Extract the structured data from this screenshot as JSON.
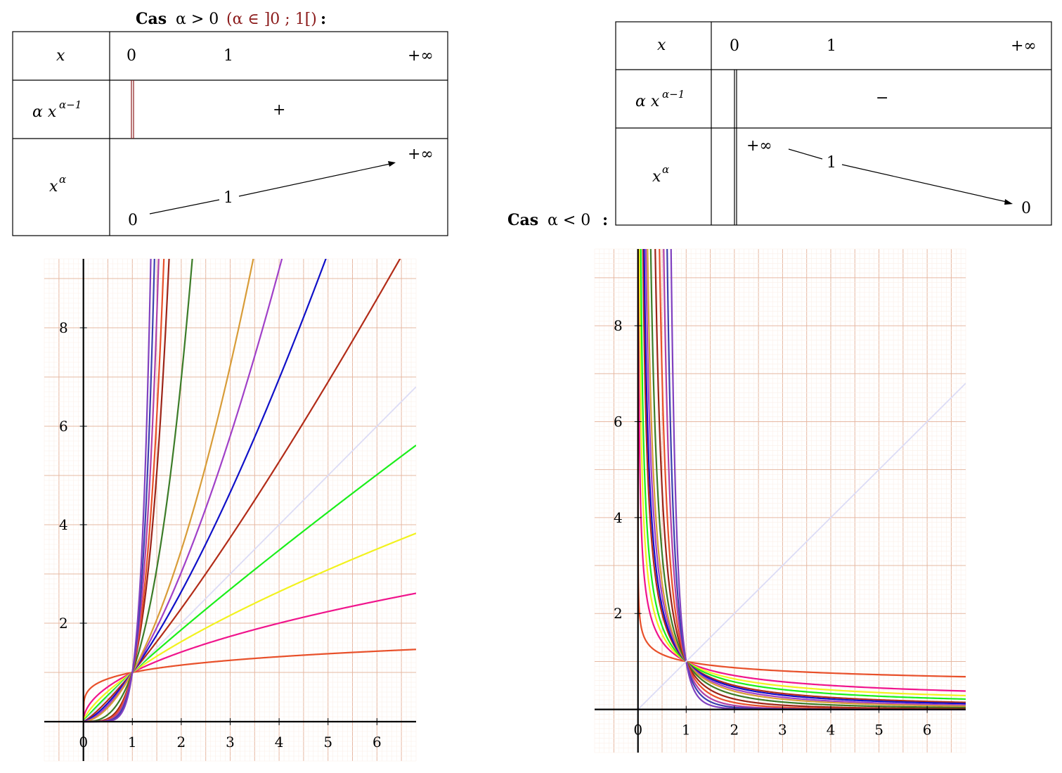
{
  "left_table": {
    "title_prefix": "Cas",
    "title_cond": "α > 0",
    "title_sub": "(α ∈ ]0 ; 1[)",
    "title_colon": ":",
    "row_x_label": "x",
    "x_values": [
      "0",
      "1",
      "+∞"
    ],
    "row_deriv_label": "α x",
    "deriv_exp": "α−1",
    "deriv_sign": "+",
    "row_fn_label": "x",
    "fn_exp": "α",
    "fn_values": [
      "0",
      "1",
      "+∞"
    ]
  },
  "right_table": {
    "title_prefix": "Cas",
    "title_cond": "α < 0",
    "title_colon": ":",
    "row_x_label": "x",
    "x_values": [
      "0",
      "1",
      "+∞"
    ],
    "row_deriv_label": "α x",
    "deriv_exp": "α−1",
    "deriv_sign": "−",
    "row_fn_label": "x",
    "fn_exp": "α",
    "fn_values": [
      "+∞",
      "1",
      "0"
    ]
  },
  "chart_data": [
    {
      "type": "line",
      "xlim": [
        -0.8,
        6.8
      ],
      "ylim": [
        -0.8,
        9.4
      ],
      "xticks": [
        "0",
        "1",
        "2",
        "3",
        "4",
        "5",
        "6"
      ],
      "yticks": [
        "2",
        "4",
        "6",
        "8"
      ],
      "grid": true,
      "function": "y = x^α",
      "series": [
        {
          "alpha": 0.2,
          "color": "#e8502a"
        },
        {
          "alpha": 0.5,
          "color": "#f0148c"
        },
        {
          "alpha": 0.7,
          "color": "#f2f21e"
        },
        {
          "alpha": 0.9,
          "color": "#1aef1a"
        },
        {
          "alpha": 1.0,
          "color": "#dcdcf6"
        },
        {
          "alpha": 1.2,
          "color": "#b22c18"
        },
        {
          "alpha": 1.4,
          "color": "#1010c8"
        },
        {
          "alpha": 1.6,
          "color": "#a040c8"
        },
        {
          "alpha": 1.8,
          "color": "#d89c38"
        },
        {
          "alpha": 2.8,
          "color": "#3c7c28"
        },
        {
          "alpha": 4.0,
          "color": "#9c2418"
        },
        {
          "alpha": 4.5,
          "color": "#e8502a"
        },
        {
          "alpha": 5.2,
          "color": "#b040a8"
        },
        {
          "alpha": 6.0,
          "color": "#3c40b0"
        },
        {
          "alpha": 7.0,
          "color": "#8040c0"
        }
      ]
    },
    {
      "type": "line",
      "xlim": [
        -0.9,
        6.8
      ],
      "ylim": [
        -0.9,
        9.6
      ],
      "xticks": [
        "0",
        "1",
        "2",
        "3",
        "4",
        "5",
        "6"
      ],
      "yticks": [
        "2",
        "4",
        "6",
        "8"
      ],
      "grid": true,
      "function": "y = x^α",
      "series": [
        {
          "alpha": -0.2,
          "color": "#e8502a"
        },
        {
          "alpha": -0.5,
          "color": "#f0148c"
        },
        {
          "alpha": -0.65,
          "color": "#f2f21e"
        },
        {
          "alpha": -0.8,
          "color": "#1aef1a"
        },
        {
          "alpha": -1.0,
          "color": "#b22c18"
        },
        {
          "alpha": -1.1,
          "color": "#1010c8"
        },
        {
          "alpha": -1.25,
          "color": "#a040c8"
        },
        {
          "alpha": -1.4,
          "color": "#d89c38"
        },
        {
          "alpha": -1.7,
          "color": "#3c7c28"
        },
        {
          "alpha": -2.2,
          "color": "#9c2418"
        },
        {
          "alpha": -2.8,
          "color": "#e8502a"
        },
        {
          "alpha": -3.6,
          "color": "#b040a8"
        },
        {
          "alpha": -4.5,
          "color": "#3c40b0"
        },
        {
          "alpha": -6.0,
          "color": "#8040c0"
        },
        {
          "alpha": 1.0,
          "color": "#dcdcf6"
        }
      ]
    }
  ]
}
